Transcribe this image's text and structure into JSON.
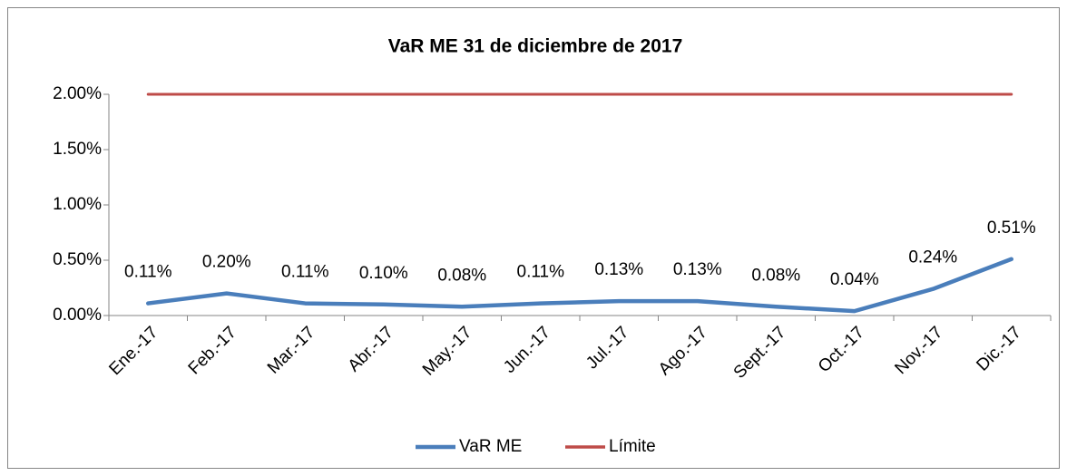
{
  "chart_data": {
    "type": "line",
    "title": "VaR ME 31 de diciembre de 2017",
    "categories": [
      "Ene.-17",
      "Feb.-17",
      "Mar.-17",
      "Abr.-17",
      "May.-17",
      "Jun.-17",
      "Jul.-17",
      "Ago.-17",
      "Sept.-17",
      "Oct.-17",
      "Nov.-17",
      "Dic.-17"
    ],
    "series": [
      {
        "name": "VaR ME",
        "color": "#4a7ebb",
        "values": [
          0.11,
          0.2,
          0.11,
          0.1,
          0.08,
          0.11,
          0.13,
          0.13,
          0.08,
          0.04,
          0.24,
          0.51
        ],
        "value_labels": [
          "0.11%",
          "0.20%",
          "0.11%",
          "0.10%",
          "0.08%",
          "0.11%",
          "0.13%",
          "0.13%",
          "0.08%",
          "0.04%",
          "0.24%",
          "0.51%"
        ]
      },
      {
        "name": "Límite",
        "color": "#be4b48",
        "values": [
          2,
          2,
          2,
          2,
          2,
          2,
          2,
          2,
          2,
          2,
          2,
          2
        ]
      }
    ],
    "ylim": [
      0,
      2
    ],
    "yticks": [
      {
        "value": 0,
        "label": "0.00%"
      },
      {
        "value": 0.5,
        "label": "0.50%"
      },
      {
        "value": 1,
        "label": "1.00%"
      },
      {
        "value": 1.5,
        "label": "1.50%"
      },
      {
        "value": 2,
        "label": "2.00%"
      }
    ],
    "grid": false,
    "legend": "bottom"
  }
}
